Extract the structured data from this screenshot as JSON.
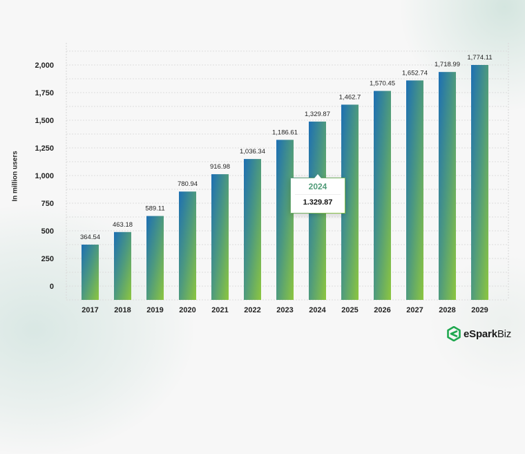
{
  "chart_data": {
    "type": "bar",
    "title": "",
    "xlabel": "",
    "ylabel": "In million users",
    "categories": [
      "2017",
      "2018",
      "2019",
      "2020",
      "2021",
      "2022",
      "2023",
      "2024",
      "2025",
      "2026",
      "2027",
      "2028",
      "2029"
    ],
    "values": [
      364.54,
      463.18,
      589.11,
      780.94,
      916.98,
      1036.34,
      1186.61,
      1329.87,
      1462.7,
      1570.45,
      1652.74,
      1718.99,
      1774.11
    ],
    "data_labels": [
      "364.54",
      "463.18",
      "589.11",
      "780.94",
      "916.98",
      "1,036.34",
      "1,186.61",
      "1,329.87",
      "1,462.7",
      "1,570.45",
      "1,652.74",
      "1,718.99",
      "1,774.11"
    ],
    "y_ticks": [
      0,
      250,
      500,
      750,
      1000,
      1250,
      1500,
      1750,
      2000
    ],
    "y_tick_labels": [
      "0",
      "250",
      "500",
      "750",
      "1,000",
      "1,250",
      "1,500",
      "1,750",
      "2,000"
    ],
    "ylim": [
      0,
      2000
    ],
    "grid": true,
    "grid_style": "dotted",
    "legend": "none",
    "bar_gradient": [
      "#1d6fb3",
      "#4e9a7e",
      "#8dc63f"
    ],
    "tooltip": {
      "category": "2024",
      "value": "1.329.87",
      "year_color": "#4f9b78"
    }
  },
  "branding": {
    "logo_bold": "eSpark",
    "logo_light": "Biz",
    "logo_color": "#1fa84f"
  }
}
